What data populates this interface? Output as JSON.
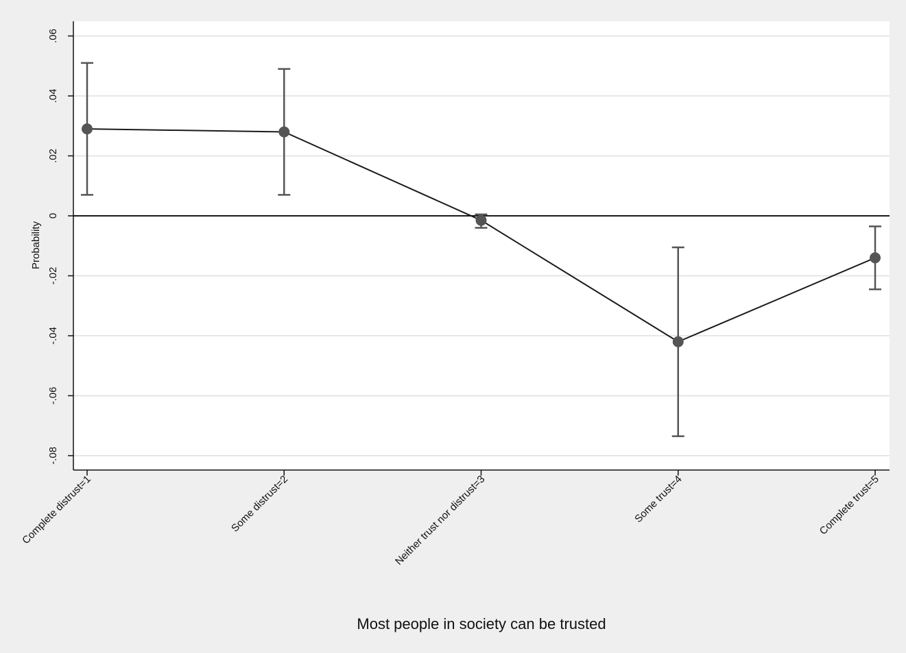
{
  "chart_data": {
    "type": "line",
    "xlabel": "Most people in society can be trusted",
    "ylabel": "Probability",
    "ylim": [
      -0.085,
      0.065
    ],
    "yticks": [
      {
        "value": 0.06,
        "label": ".06"
      },
      {
        "value": 0.04,
        "label": ".04"
      },
      {
        "value": 0.02,
        "label": ".02"
      },
      {
        "value": 0,
        "label": "0"
      },
      {
        "value": -0.02,
        "label": "-.02"
      },
      {
        "value": -0.04,
        "label": "-.04"
      },
      {
        "value": -0.06,
        "label": "-.06"
      },
      {
        "value": -0.08,
        "label": "-.08"
      }
    ],
    "categories": [
      "Complete distrust=1",
      "Some distrust=2",
      "Neither trust nor distrust=3",
      "Some trust=4",
      "Complete trust=5"
    ],
    "series": [
      {
        "values": [
          0.029,
          0.028,
          -0.0015,
          -0.042,
          -0.014
        ],
        "ci_lower": [
          0.007,
          0.007,
          -0.004,
          -0.0735,
          -0.0245
        ],
        "ci_upper": [
          0.051,
          0.049,
          0.0005,
          -0.0105,
          -0.0035
        ]
      }
    ],
    "reference_line": 0,
    "grid": true,
    "colors": {
      "background": "#efefef",
      "plot_background": "#ffffff",
      "grid": "#e6e6e6",
      "line": "#1a1a1a",
      "marker": "#555555",
      "errorbar": "#555555"
    }
  }
}
